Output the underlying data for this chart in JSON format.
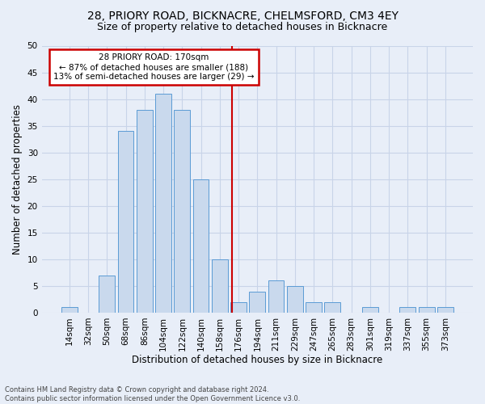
{
  "title": "28, PRIORY ROAD, BICKNACRE, CHELMSFORD, CM3 4EY",
  "subtitle": "Size of property relative to detached houses in Bicknacre",
  "xlabel": "Distribution of detached houses by size in Bicknacre",
  "ylabel": "Number of detached properties",
  "footnote1": "Contains HM Land Registry data © Crown copyright and database right 2024.",
  "footnote2": "Contains public sector information licensed under the Open Government Licence v3.0.",
  "bar_labels": [
    "14sqm",
    "32sqm",
    "50sqm",
    "68sqm",
    "86sqm",
    "104sqm",
    "122sqm",
    "140sqm",
    "158sqm",
    "176sqm",
    "194sqm",
    "211sqm",
    "229sqm",
    "247sqm",
    "265sqm",
    "283sqm",
    "301sqm",
    "319sqm",
    "337sqm",
    "355sqm",
    "373sqm"
  ],
  "bar_values": [
    1,
    0,
    7,
    34,
    38,
    41,
    38,
    25,
    10,
    2,
    4,
    6,
    5,
    2,
    2,
    0,
    1,
    0,
    1,
    1,
    1
  ],
  "bar_color": "#c9d9ed",
  "bar_edge_color": "#5b9bd5",
  "annotation_line_color": "#cc0000",
  "annotation_text_line1": "28 PRIORY ROAD: 170sqm",
  "annotation_text_line2": "← 87% of detached houses are smaller (188)",
  "annotation_text_line3": "13% of semi-detached houses are larger (29) →",
  "annotation_box_color": "#cc0000",
  "ylim": [
    0,
    50
  ],
  "yticks": [
    0,
    5,
    10,
    15,
    20,
    25,
    30,
    35,
    40,
    45,
    50
  ],
  "grid_color": "#c8d4e8",
  "bg_color": "#e8eef8",
  "title_fontsize": 10,
  "subtitle_fontsize": 9,
  "tick_fontsize": 7.5,
  "label_fontsize": 8.5,
  "footnote_fontsize": 6.0
}
